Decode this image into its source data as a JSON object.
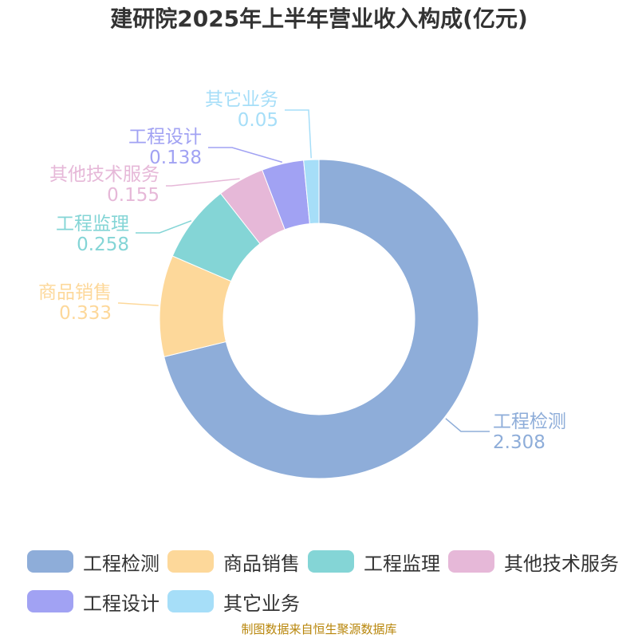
{
  "chart_data": {
    "type": "pie",
    "title": "建研院2025年上半年营业收入构成(亿元)",
    "categories": [
      "工程检测",
      "商品销售",
      "工程监理",
      "其他技术服务",
      "工程设计",
      "其它业务"
    ],
    "values": [
      2.308,
      0.333,
      0.258,
      0.155,
      0.138,
      0.05
    ],
    "value_labels": [
      "2.308",
      "0.333",
      "0.258",
      "0.155",
      "0.138",
      "0.05"
    ],
    "colors": [
      "#8eadd9",
      "#fdd89a",
      "#84d5d6",
      "#e6b8d8",
      "#a1a2f3",
      "#a6def8"
    ],
    "donut": true,
    "legend_position": "bottom"
  },
  "source": "制图数据来自恒生聚源数据库"
}
